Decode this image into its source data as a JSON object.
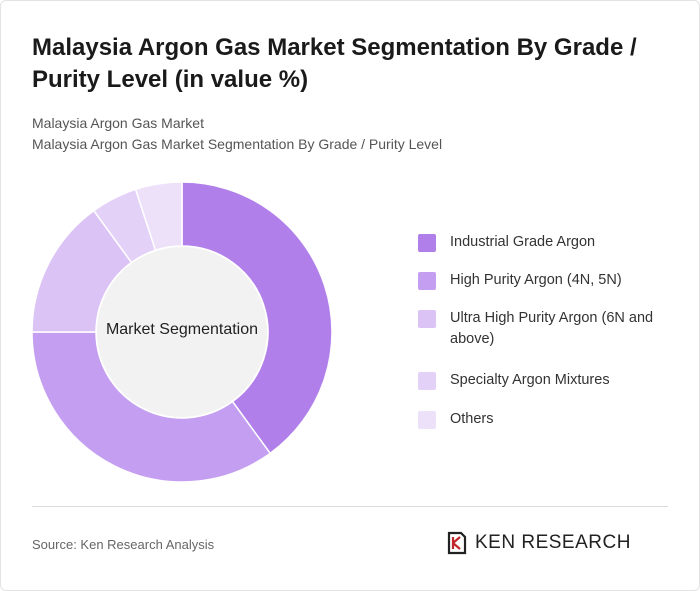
{
  "header": {
    "title": "Malaysia Argon Gas Market Segmentation By Grade / Purity Level (in value %)",
    "subtitle_line1": "Malaysia Argon Gas Market",
    "subtitle_line2": "Malaysia Argon Gas Market Segmentation By Grade / Purity Level"
  },
  "chart_data": {
    "type": "pie",
    "variant": "donut",
    "center_label": "Market Segmentation",
    "slices": [
      {
        "label": "Industrial Grade Argon",
        "value": 40,
        "color": "#b07fea"
      },
      {
        "label": "High Purity Argon (4N, 5N)",
        "value": 35,
        "color": "#c49ef0"
      },
      {
        "label": "Ultra High Purity Argon (6N and above)",
        "value": 15,
        "color": "#dbc3f6"
      },
      {
        "label": "Specialty Argon Mixtures",
        "value": 5,
        "color": "#e4d1f8"
      },
      {
        "label": "Others",
        "value": 5,
        "color": "#ede1fa"
      }
    ],
    "hole_color": "#f2f2f2",
    "legend_position": "right"
  },
  "footer": {
    "source": "Source: Ken Research Analysis",
    "logo_text": "KEN RESEARCH",
    "logo_icon": "ken-research-logo-icon"
  }
}
